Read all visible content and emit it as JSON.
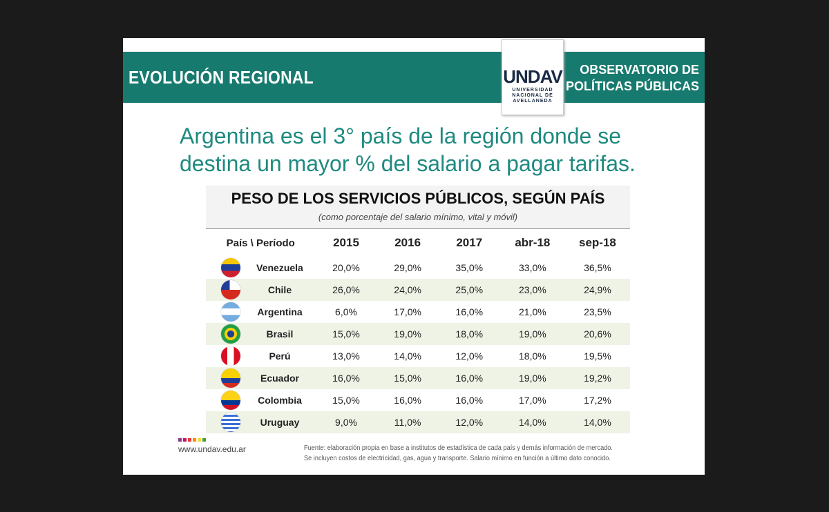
{
  "header": {
    "section_title": "EVOLUCIÓN REGIONAL",
    "observatory": [
      "OBSERVATORIO DE",
      "POLÍTICAS PÚBLICAS"
    ],
    "logo_mark": "UNDAV",
    "logo_text": [
      "UNIVERSIDAD",
      "NACIONAL DE",
      "AVELLANEDA"
    ],
    "band_color": "#177a6e"
  },
  "headline": [
    "Argentina es el 3° país de la región donde se",
    "destina un mayor % del salario a pagar tarifas."
  ],
  "table": {
    "title": "PESO DE LOS SERVICIOS PÚBLICOS, SEGÚN PAÍS",
    "subtitle": "(como porcentaje del salario mínimo, vital y móvil)",
    "columns": [
      "País \\ Período",
      "2015",
      "2016",
      "2017",
      "abr-18",
      "sep-18"
    ],
    "rows": [
      {
        "country": "Venezuela",
        "flag": "venezuela-flag",
        "values": [
          "20,0%",
          "29,0%",
          "35,0%",
          "33,0%",
          "36,5%"
        ]
      },
      {
        "country": "Chile",
        "flag": "chile-flag",
        "values": [
          "26,0%",
          "24,0%",
          "25,0%",
          "23,0%",
          "24,9%"
        ]
      },
      {
        "country": "Argentina",
        "flag": "argentina-flag",
        "values": [
          "6,0%",
          "17,0%",
          "16,0%",
          "21,0%",
          "23,5%"
        ]
      },
      {
        "country": "Brasil",
        "flag": "brazil-flag",
        "values": [
          "15,0%",
          "19,0%",
          "18,0%",
          "19,0%",
          "20,6%"
        ]
      },
      {
        "country": "Perú",
        "flag": "peru-flag",
        "values": [
          "13,0%",
          "14,0%",
          "12,0%",
          "18,0%",
          "19,5%"
        ]
      },
      {
        "country": "Ecuador",
        "flag": "ecuador-flag",
        "values": [
          "16,0%",
          "15,0%",
          "16,0%",
          "19,0%",
          "19,2%"
        ]
      },
      {
        "country": "Colombia",
        "flag": "colombia-flag",
        "values": [
          "15,0%",
          "16,0%",
          "16,0%",
          "17,0%",
          "17,2%"
        ]
      },
      {
        "country": "Uruguay",
        "flag": "uruguay-flag",
        "values": [
          "9,0%",
          "11,0%",
          "12,0%",
          "14,0%",
          "14,0%"
        ]
      }
    ]
  },
  "footer": {
    "website": "www.undav.edu.ar",
    "source": [
      "Fuente: elaboración propia en base a institutos de estadística de cada país y demás información de mercado.",
      "Se incluyen costos de electricidad, gas, agua y transporte. Salario mínimo en función a último dato conocido."
    ]
  }
}
